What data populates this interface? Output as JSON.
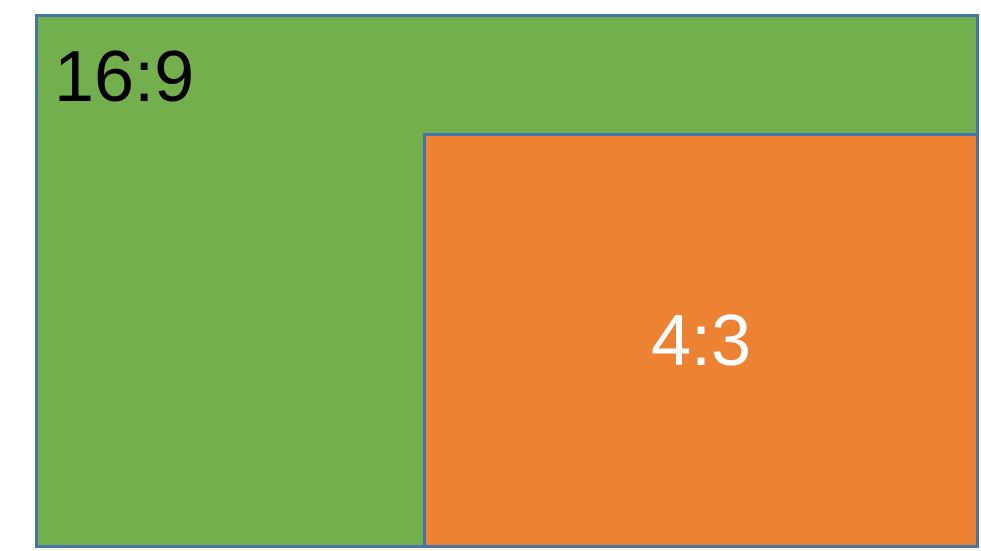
{
  "colors": {
    "background": "#ffffff",
    "border": "#4673A8",
    "wide-fill": "#73AF4C",
    "standard-fill": "#ED8233",
    "wide-text": "#000000",
    "standard-text": "#ffffff"
  },
  "rects": {
    "wide": {
      "label": "16:9"
    },
    "standard": {
      "label": "4:3"
    }
  }
}
